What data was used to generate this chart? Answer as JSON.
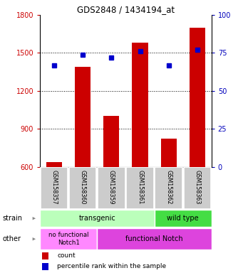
{
  "title": "GDS2848 / 1434194_at",
  "samples": [
    "GSM158357",
    "GSM158360",
    "GSM158359",
    "GSM158361",
    "GSM158362",
    "GSM158363"
  ],
  "bar_values": [
    640,
    1390,
    1000,
    1580,
    820,
    1700
  ],
  "dot_percentiles": [
    67,
    74,
    72,
    76,
    67,
    77
  ],
  "ylim_left": [
    600,
    1800
  ],
  "ylim_right": [
    0,
    100
  ],
  "yticks_left": [
    600,
    900,
    1200,
    1500,
    1800
  ],
  "yticks_right": [
    0,
    25,
    50,
    75,
    100
  ],
  "bar_color": "#cc0000",
  "dot_color": "#0000cc",
  "transgenic_color": "#bbffbb",
  "wildtype_color": "#44dd44",
  "nofunc_color": "#ff88ff",
  "func_color": "#dd44dd",
  "tick_bg": "#cccccc",
  "left_color": "#cc0000",
  "right_color": "#0000bb"
}
